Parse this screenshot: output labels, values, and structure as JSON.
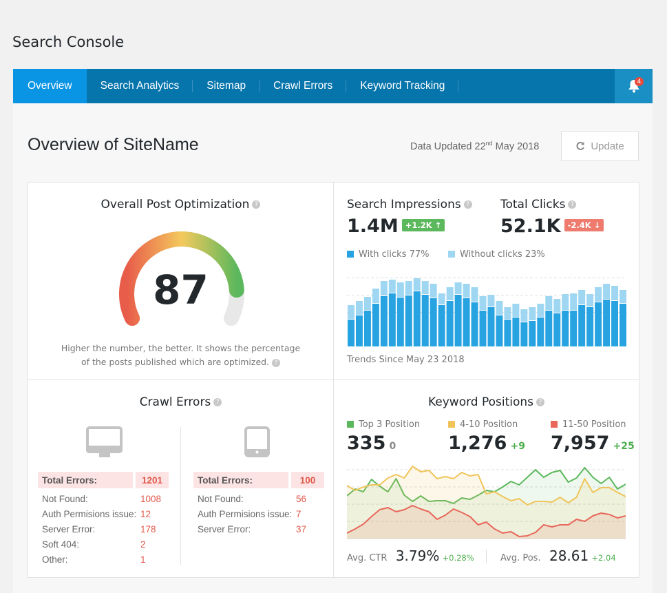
{
  "app_title": "Search Console",
  "nav": {
    "tabs": [
      {
        "label": "Overview",
        "active": true
      },
      {
        "label": "Search Analytics"
      },
      {
        "label": "Sitemap"
      },
      {
        "label": "Crawl Errors"
      },
      {
        "label": "Keyword Tracking"
      }
    ],
    "notifications": "4",
    "icon": "bell-icon"
  },
  "header": {
    "title": "Overview of SiteName",
    "updated_prefix": "Data Updated 22",
    "updated_sup": "nd",
    "updated_suffix": " May 2018",
    "update_button": "Update",
    "update_icon": "refresh-icon"
  },
  "optimization": {
    "title": "Overall Post Optimization",
    "help": "?",
    "score": "87",
    "score_value": 87,
    "desc": "Higher the number, the better. It shows the percentage of the posts published which are optimized.",
    "colors": [
      "#e85c4a",
      "#f4c95d",
      "#5cb85c"
    ]
  },
  "impressions": {
    "title": "Search Impressions",
    "help": "?",
    "value": "1.4M",
    "change": "+1.2K ↑",
    "change_color": "#5cb85c"
  },
  "clicks": {
    "title": "Total Clicks",
    "help": "?",
    "value": "52.1K",
    "change": "-2.4K ↓",
    "change_color": "#ee7b6e"
  },
  "chart_data": [
    {
      "type": "bar",
      "stacked": true,
      "legend": [
        {
          "label": "With clicks 77%",
          "color": "#27a3e2"
        },
        {
          "label": "Without clicks 23%",
          "color": "#9fd7f3"
        }
      ],
      "series": [
        {
          "name": "With clicks",
          "values": [
            39,
            45,
            52,
            62,
            73,
            77,
            71,
            74,
            80,
            75,
            70,
            60,
            66,
            75,
            70,
            64,
            52,
            57,
            45,
            39,
            42,
            35,
            37,
            42,
            52,
            48,
            52,
            52,
            60,
            57,
            64,
            68,
            66,
            62
          ]
        },
        {
          "name": "Without clicks",
          "values": [
            21,
            21,
            20,
            22,
            22,
            20,
            22,
            21,
            19,
            20,
            21,
            17,
            20,
            18,
            21,
            22,
            21,
            18,
            21,
            18,
            20,
            19,
            20,
            20,
            21,
            21,
            24,
            25,
            22,
            19,
            22,
            23,
            22,
            20
          ]
        }
      ],
      "footer": "Trends Since May 23 2018",
      "grid": true
    },
    {
      "type": "area",
      "legend": [
        {
          "label": "Top 3 Position",
          "color": "#5cb85c"
        },
        {
          "label": "4-10 Position",
          "color": "#f0c45a"
        },
        {
          "label": "11-50 Position",
          "color": "#e8675a"
        }
      ],
      "series": [
        {
          "name": "Top 3 Position",
          "values": [
            62,
            72,
            68,
            86,
            76,
            68,
            87,
            63,
            54,
            62,
            54,
            55,
            55,
            51,
            59,
            57,
            63,
            70,
            68,
            75,
            83,
            78,
            89,
            100,
            89,
            96,
            99,
            82,
            88,
            103,
            89,
            80,
            89,
            72,
            79
          ]
        },
        {
          "name": "4-10 Position",
          "values": [
            77,
            70,
            75,
            78,
            78,
            88,
            93,
            88,
            105,
            97,
            99,
            87,
            90,
            87,
            96,
            91,
            93,
            65,
            68,
            61,
            55,
            58,
            49,
            54,
            54,
            53,
            60,
            52,
            60,
            87,
            67,
            74,
            74,
            67,
            61
          ]
        },
        {
          "name": "11-50 Position",
          "values": [
            8,
            14,
            21,
            32,
            42,
            45,
            39,
            42,
            48,
            43,
            39,
            28,
            34,
            43,
            38,
            32,
            20,
            24,
            14,
            8,
            10,
            3,
            4,
            9,
            20,
            17,
            20,
            20,
            28,
            25,
            33,
            37,
            35,
            30,
            33
          ]
        }
      ],
      "grid": true
    }
  ],
  "crawl": {
    "title": "Crawl Errors",
    "help": "?",
    "desktop": {
      "icon": "desktop-icon",
      "total_label": "Total Errors:",
      "total": "1201",
      "rows": [
        {
          "label": "Not Found:",
          "value": "1008"
        },
        {
          "label": "Auth Permisions issue:",
          "value": "12"
        },
        {
          "label": "Server Error:",
          "value": "178"
        },
        {
          "label": "Soft 404:",
          "value": "2"
        },
        {
          "label": "Other:",
          "value": "1"
        }
      ]
    },
    "mobile": {
      "icon": "tablet-icon",
      "total_label": "Total Errors:",
      "total": "100",
      "rows": [
        {
          "label": "Not Found:",
          "value": "56"
        },
        {
          "label": "Auth Permisions issue:",
          "value": "7"
        },
        {
          "label": "Server Error:",
          "value": "37"
        }
      ]
    }
  },
  "keywords": {
    "title": "Keyword Positions",
    "help": "?",
    "stats": [
      {
        "label": "Top 3 Position",
        "value": "335",
        "change": "0"
      },
      {
        "label": "4-10 Position",
        "value": "1,276",
        "change": "+9"
      },
      {
        "label": "11-50 Position",
        "value": "7,957",
        "change": "+25"
      }
    ],
    "ctr_label": "Avg. CTR",
    "ctr": "3.79%",
    "ctr_change": "+0.28%",
    "pos_label": "Avg. Pos.",
    "pos": "28.61",
    "pos_change": "+2.04"
  }
}
